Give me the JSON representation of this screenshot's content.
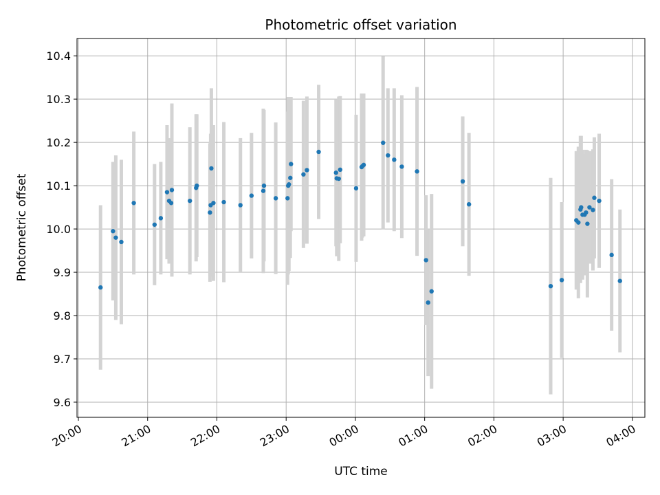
{
  "chart_data": {
    "type": "scatter",
    "title": "Photometric offset variation",
    "xlabel": "UTC time",
    "ylabel": "Photometric offset",
    "x_unit": "hours since 20:00 UTC",
    "xlim": [
      -0.02,
      8.18
    ],
    "ylim": [
      9.565,
      10.44
    ],
    "grid": true,
    "x_tick_labels": [
      "20:00",
      "21:00",
      "22:00",
      "23:00",
      "00:00",
      "01:00",
      "02:00",
      "03:00",
      "04:00"
    ],
    "y_ticks": [
      9.6,
      9.7,
      9.8,
      9.9,
      10.0,
      10.1,
      10.2,
      10.3,
      10.4
    ],
    "colors": {
      "point": "#1f77b4",
      "errorbar": "#d3d3d3",
      "grid": "#b0b0b0"
    },
    "series": [
      {
        "points": [
          [
            0.32,
            9.865,
            0.19
          ],
          [
            0.5,
            9.995,
            0.16
          ],
          [
            0.54,
            9.98,
            0.19
          ],
          [
            0.62,
            9.97,
            0.19
          ],
          [
            0.8,
            10.06,
            0.165
          ],
          [
            1.1,
            10.01,
            0.14
          ],
          [
            1.19,
            10.025,
            0.13
          ],
          [
            1.28,
            10.085,
            0.155
          ],
          [
            1.31,
            10.065,
            0.145
          ],
          [
            1.34,
            10.06,
            0.115
          ],
          [
            1.35,
            10.09,
            0.2
          ],
          [
            1.61,
            10.065,
            0.17
          ],
          [
            1.7,
            10.095,
            0.17
          ],
          [
            1.71,
            10.1,
            0.165
          ],
          [
            1.9,
            10.038,
            0.16
          ],
          [
            1.91,
            10.055,
            0.165
          ],
          [
            1.92,
            10.14,
            0.185
          ],
          [
            1.95,
            10.06,
            0.18
          ],
          [
            2.1,
            10.062,
            0.185
          ],
          [
            2.34,
            10.055,
            0.155
          ],
          [
            2.5,
            10.077,
            0.145
          ],
          [
            2.67,
            10.088,
            0.19
          ],
          [
            2.68,
            10.1,
            0.175
          ],
          [
            2.85,
            10.071,
            0.175
          ],
          [
            3.02,
            10.071,
            0.2
          ],
          [
            3.03,
            10.1,
            0.205
          ],
          [
            3.04,
            10.103,
            0.2
          ],
          [
            3.06,
            10.118,
            0.185
          ],
          [
            3.07,
            10.15,
            0.155
          ],
          [
            3.25,
            10.126,
            0.17
          ],
          [
            3.3,
            10.136,
            0.17
          ],
          [
            3.47,
            10.178,
            0.155
          ],
          [
            3.72,
            10.13,
            0.17
          ],
          [
            3.73,
            10.117,
            0.18
          ],
          [
            3.76,
            10.116,
            0.19
          ],
          [
            3.78,
            10.137,
            0.17
          ],
          [
            4.01,
            10.094,
            0.17
          ],
          [
            4.09,
            10.143,
            0.17
          ],
          [
            4.1,
            10.145,
            0.165
          ],
          [
            4.12,
            10.148,
            0.165
          ],
          [
            4.4,
            10.199,
            0.2
          ],
          [
            4.47,
            10.17,
            0.155
          ],
          [
            4.56,
            10.16,
            0.165
          ],
          [
            4.67,
            10.144,
            0.165
          ],
          [
            4.89,
            10.133,
            0.195
          ],
          [
            5.02,
            9.928,
            0.15
          ],
          [
            5.05,
            9.83,
            0.17
          ],
          [
            5.1,
            9.856,
            0.225
          ],
          [
            5.55,
            10.11,
            0.15
          ],
          [
            5.64,
            10.057,
            0.165
          ],
          [
            6.82,
            9.868,
            0.25
          ],
          [
            6.98,
            9.882,
            0.18
          ],
          [
            7.19,
            10.02,
            0.16
          ],
          [
            7.22,
            10.015,
            0.175
          ],
          [
            7.25,
            10.045,
            0.17
          ],
          [
            7.26,
            10.05,
            0.165
          ],
          [
            7.28,
            10.033,
            0.15
          ],
          [
            7.31,
            10.033,
            0.14
          ],
          [
            7.33,
            10.038,
            0.145
          ],
          [
            7.35,
            10.012,
            0.17
          ],
          [
            7.38,
            10.05,
            0.13
          ],
          [
            7.43,
            10.044,
            0.14
          ],
          [
            7.45,
            10.072,
            0.14
          ],
          [
            7.52,
            10.065,
            0.155
          ],
          [
            7.7,
            9.94,
            0.175
          ],
          [
            7.82,
            9.88,
            0.165
          ]
        ]
      }
    ]
  }
}
